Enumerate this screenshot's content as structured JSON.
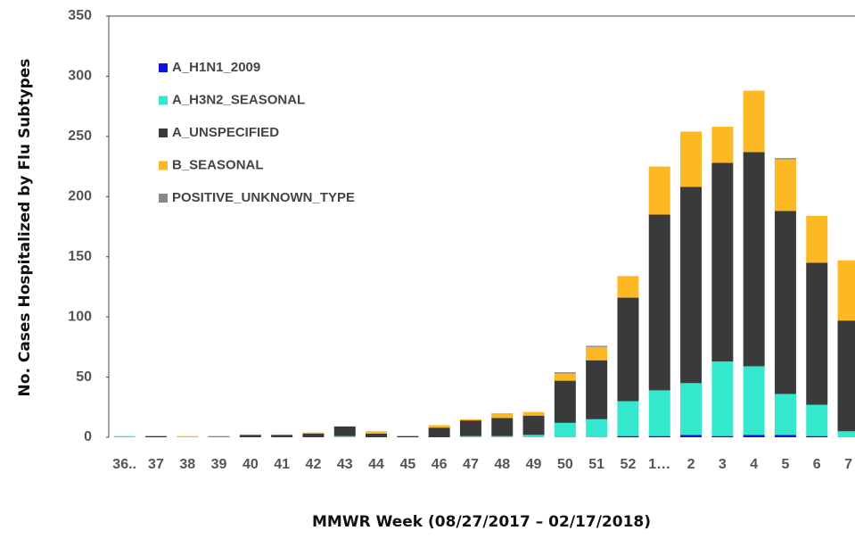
{
  "chart_data": {
    "type": "stacked-bar",
    "y_label": "No. Cases Hospitalized by Flu Subtypes",
    "x_label": "MMWR Week (08/27/2017 – 02/17/2018)",
    "categories": [
      "36..",
      "37",
      "38",
      "39",
      "40",
      "41",
      "42",
      "43",
      "44",
      "45",
      "46",
      "47",
      "48",
      "49",
      "50",
      "51",
      "52",
      "1…",
      "2",
      "3",
      "4",
      "5",
      "6",
      "7"
    ],
    "series": [
      {
        "name": "A_H1N1_2009",
        "color": "#1010e8",
        "values": [
          0,
          0,
          0,
          0,
          0,
          0,
          0,
          0,
          0,
          0,
          0,
          0,
          0,
          0,
          0,
          0,
          1,
          1,
          2,
          1,
          2,
          2,
          1,
          0
        ]
      },
      {
        "name": "A_H3N2_SEASONAL",
        "color": "#33e8cc",
        "values": [
          1,
          0,
          0,
          0,
          0,
          0,
          0,
          1,
          0,
          0,
          0,
          1,
          1,
          2,
          12,
          15,
          29,
          38,
          43,
          62,
          57,
          34,
          26,
          5
        ]
      },
      {
        "name": "A_UNSPECIFIED",
        "color": "#3a3a3a",
        "values": [
          0,
          1,
          0,
          0,
          2,
          2,
          3,
          8,
          3,
          1,
          8,
          13,
          15,
          16,
          35,
          49,
          86,
          146,
          163,
          165,
          178,
          152,
          118,
          92
        ]
      },
      {
        "name": "B_SEASONAL",
        "color": "#fdb924",
        "values": [
          0,
          0,
          1,
          0,
          0,
          0,
          1,
          0,
          2,
          0,
          2,
          1,
          4,
          3,
          6,
          11,
          18,
          40,
          46,
          30,
          51,
          43,
          39,
          50
        ]
      },
      {
        "name": "POSITIVE_UNKNOWN_TYPE",
        "color": "#888888",
        "values": [
          0,
          0,
          0,
          1,
          0,
          0,
          0,
          0,
          0,
          0,
          0,
          0,
          0,
          0,
          1,
          1,
          0,
          0,
          0,
          0,
          0,
          1,
          0,
          0
        ]
      }
    ],
    "ylim": [
      0,
      350
    ],
    "yticks": [
      0,
      50,
      100,
      150,
      200,
      250,
      300,
      350
    ],
    "grid": false
  }
}
